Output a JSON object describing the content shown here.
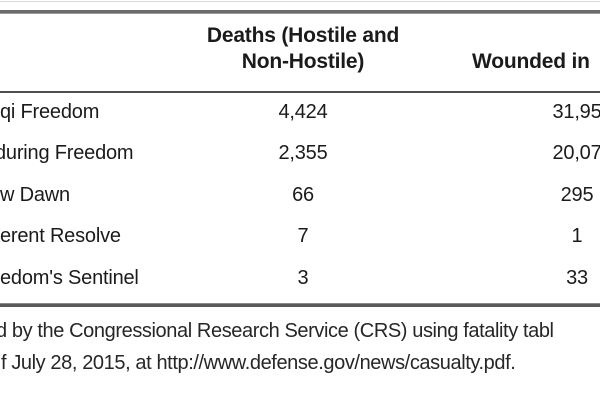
{
  "table": {
    "header": {
      "deaths_line1": "Deaths (Hostile and",
      "deaths_line2": "Non-Hostile)",
      "wounded": "Wounded in"
    },
    "rows": [
      {
        "label": "qi Freedom",
        "deaths": "4,424",
        "wounded": "31,95"
      },
      {
        "label": "during Freedom",
        "deaths": "2,355",
        "wounded": "20,07"
      },
      {
        "label": "w Dawn",
        "deaths": "66",
        "wounded": "295"
      },
      {
        "label": "erent Resolve",
        "deaths": "7",
        "wounded": "1"
      },
      {
        "label": "edom's Sentinel",
        "deaths": "3",
        "wounded": "33"
      }
    ]
  },
  "footer": {
    "line1": "d by the Congressional Research Service (CRS) using fatality tabl",
    "line2": "f July 28, 2015, at http://www.defense.gov/news/casualty.pdf."
  },
  "colors": {
    "text": "#1b1b1b",
    "rule_dark": "#4f4f4f",
    "rule_gray": "#6b6b6b",
    "rule_faint": "#d9d9d9"
  }
}
